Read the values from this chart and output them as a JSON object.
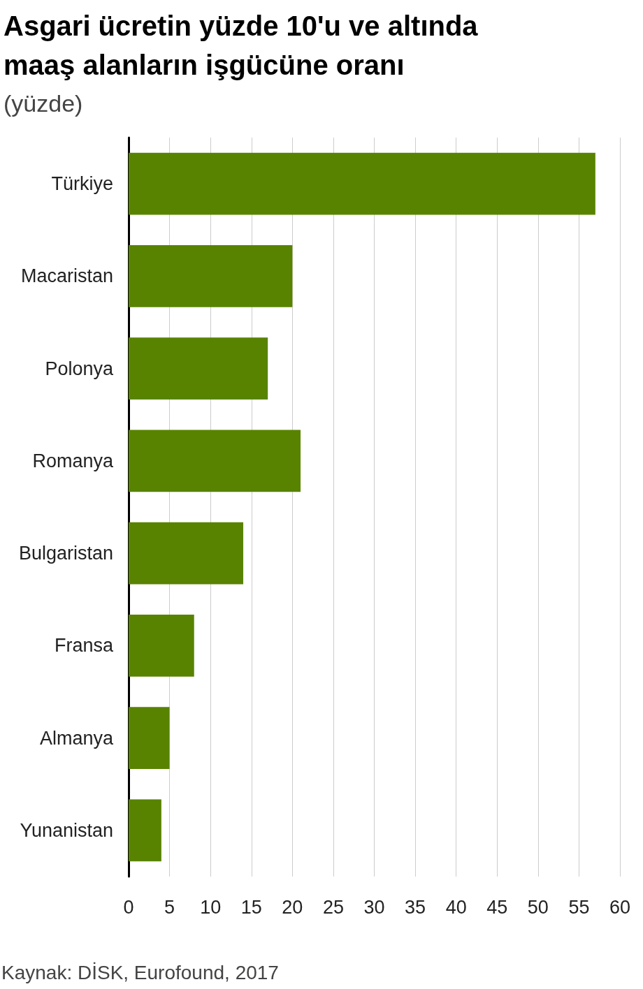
{
  "chart_data": {
    "type": "bar",
    "orientation": "horizontal",
    "title": "Asgari ücretin yüzde 10'u ve altında maaş alanların işgücüne oranı",
    "subtitle": "(yüzde)",
    "categories": [
      "Türkiye",
      "Macaristan",
      "Polonya",
      "Romanya",
      "Bulgaristan",
      "Fransa",
      "Almanya",
      "Yunanistan"
    ],
    "values": [
      57,
      20,
      17,
      21,
      14,
      8,
      5,
      4
    ],
    "color": "#588300",
    "xlim": [
      0,
      60
    ],
    "xticks": [
      0,
      5,
      10,
      15,
      20,
      25,
      30,
      35,
      40,
      45,
      50,
      55,
      60
    ],
    "grid": "x",
    "annotations": [
      "Kaynak: DİSK, Eurofound, 2017"
    ]
  }
}
